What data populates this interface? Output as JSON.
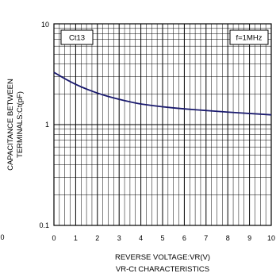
{
  "chart_data": {
    "type": "line",
    "title": "VR-Ct CHARACTERISTICS",
    "xlabel": "REVERSE VOLTAGE:VR(V)",
    "ylabel_lines": [
      "CAPACITANCE BETWEEN",
      "TERMINALS:Ct(pF)"
    ],
    "xlim": [
      0,
      10
    ],
    "ylim": [
      0.1,
      10
    ],
    "y_scale": "log",
    "grid": true,
    "x_ticks": [
      "0",
      "1",
      "2",
      "3",
      "4",
      "5",
      "6",
      "7",
      "8",
      "9",
      "10"
    ],
    "y_ticks": [
      "10",
      "1",
      "0.1"
    ],
    "left_edge_label": "0",
    "series_label": "Ct13",
    "condition_label": "f=1MHz",
    "line_color": "#1a1a6e",
    "series": [
      {
        "x": [
          0,
          0.5,
          1,
          1.5,
          2,
          2.5,
          3,
          3.5,
          4,
          5,
          6,
          7,
          8,
          9,
          10
        ],
        "values": [
          3.3,
          2.85,
          2.5,
          2.25,
          2.05,
          1.9,
          1.78,
          1.68,
          1.6,
          1.5,
          1.43,
          1.38,
          1.33,
          1.29,
          1.25
        ]
      }
    ]
  }
}
